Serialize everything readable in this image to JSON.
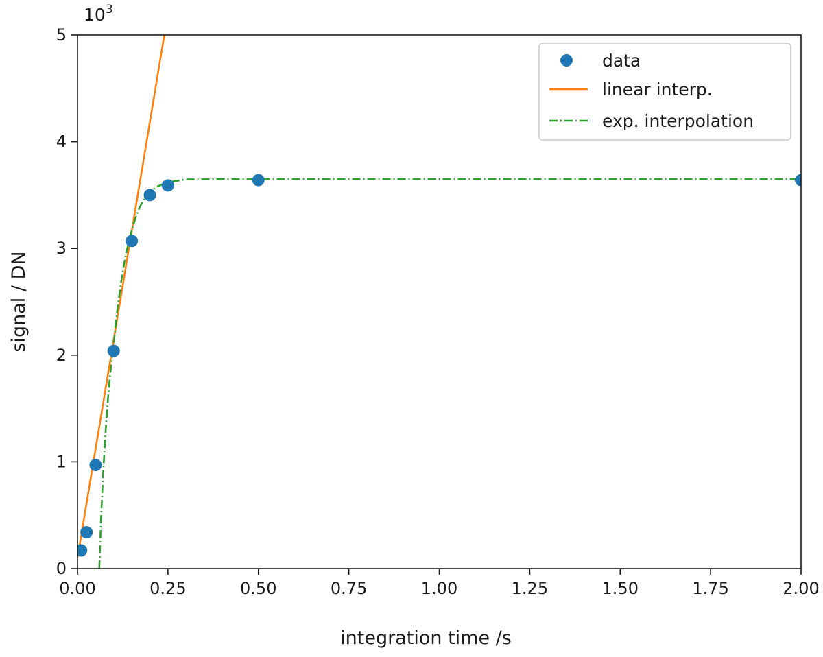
{
  "chart_data": {
    "type": "scatter",
    "xlabel": "integration time /s",
    "ylabel": "signal / DN",
    "y_multiplier": "10",
    "y_multiplier_exponent": "3",
    "xlim": [
      0,
      2.0
    ],
    "ylim": [
      0,
      5
    ],
    "x_ticks": [
      0,
      0.25,
      0.5,
      0.75,
      1.0,
      1.25,
      1.5,
      1.75,
      2.0
    ],
    "x_tick_labels": [
      "0.00",
      "0.25",
      "0.50",
      "0.75",
      "1.00",
      "1.25",
      "1.50",
      "1.75",
      "2.00"
    ],
    "y_ticks": [
      0,
      1,
      2,
      3,
      4,
      5
    ],
    "y_tick_labels": [
      "0",
      "1",
      "2",
      "3",
      "4",
      "5"
    ],
    "grid": false,
    "legend_position": "top-right",
    "series": [
      {
        "name": "data",
        "kind": "markers",
        "color": "#1f77b4",
        "x": [
          0.01,
          0.025,
          0.05,
          0.1,
          0.15,
          0.2,
          0.25,
          0.5,
          2.0
        ],
        "y": [
          0.17,
          0.34,
          0.97,
          2.04,
          3.07,
          3.5,
          3.59,
          3.64,
          3.64
        ]
      },
      {
        "name": "linear interp.",
        "kind": "line",
        "color": "#ff7f0e",
        "x": [
          0.0,
          0.24
        ],
        "y": [
          0.1,
          5.0
        ]
      },
      {
        "name": "exp. interpolation",
        "kind": "dashdot",
        "color": "#2ca02c",
        "x": [
          0.06,
          0.065,
          0.07,
          0.075,
          0.08,
          0.085,
          0.09,
          0.1,
          0.11,
          0.12,
          0.13,
          0.14,
          0.15,
          0.16,
          0.17,
          0.18,
          0.19,
          0.2,
          0.22,
          0.25,
          0.3,
          0.35,
          0.4,
          0.5,
          0.75,
          1.0,
          1.5,
          2.0
        ],
        "y": [
          0.0,
          0.46,
          0.83,
          1.14,
          1.4,
          1.62,
          1.81,
          2.11,
          2.42,
          2.67,
          2.88,
          3.04,
          3.17,
          3.28,
          3.37,
          3.44,
          3.49,
          3.53,
          3.58,
          3.62,
          3.647,
          3.648,
          3.649,
          3.65,
          3.65,
          3.65,
          3.65,
          3.65
        ]
      }
    ]
  }
}
